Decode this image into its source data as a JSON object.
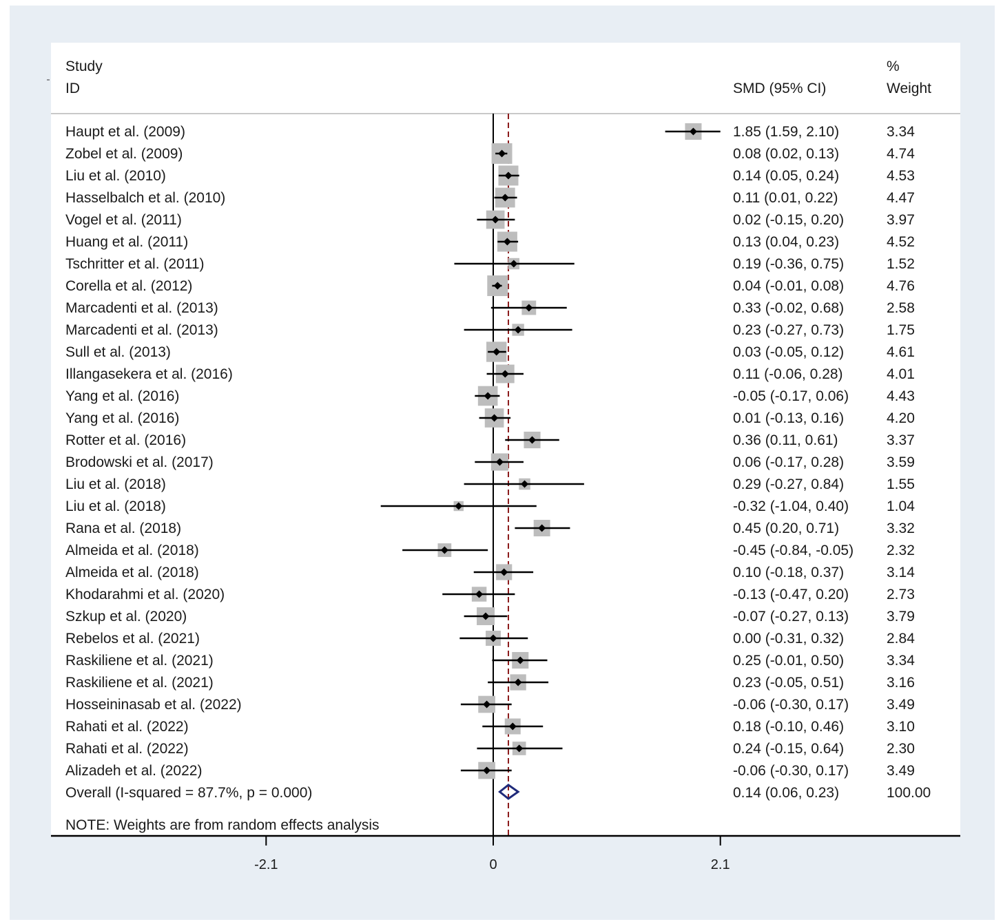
{
  "chart_data": {
    "type": "forest",
    "header": {
      "study_top": "Study",
      "study_bottom": "ID",
      "effect": "SMD (95% CI)",
      "weight_top": "%",
      "weight_bottom": "Weight"
    },
    "xlim": [
      -4.1,
      4.3
    ],
    "ticks": [
      {
        "value": -2.1,
        "label": "-2.1"
      },
      {
        "value": 0,
        "label": "0"
      },
      {
        "value": 2.1,
        "label": "2.1"
      }
    ],
    "colors": {
      "panel": "#ffffff",
      "background": "#e8eef4",
      "box": "#bdbdbd",
      "point": "#000000",
      "reference_line": "#8b1a1a",
      "diamond": "#1f2a7a"
    },
    "studies": [
      {
        "name": "Haupt et al. (2009)",
        "smd": 1.85,
        "lo": 1.59,
        "hi": 2.1,
        "ci_text": "1.85 (1.59, 2.10)",
        "weight": 3.34,
        "weight_text": "3.34"
      },
      {
        "name": "Zobel et al. (2009)",
        "smd": 0.08,
        "lo": 0.02,
        "hi": 0.13,
        "ci_text": "0.08 (0.02, 0.13)",
        "weight": 4.74,
        "weight_text": "4.74"
      },
      {
        "name": "Liu et al. (2010)",
        "smd": 0.14,
        "lo": 0.05,
        "hi": 0.24,
        "ci_text": "0.14 (0.05, 0.24)",
        "weight": 4.53,
        "weight_text": "4.53"
      },
      {
        "name": "Hasselbalch et al. (2010)",
        "smd": 0.11,
        "lo": 0.01,
        "hi": 0.22,
        "ci_text": "0.11 (0.01, 0.22)",
        "weight": 4.47,
        "weight_text": "4.47"
      },
      {
        "name": "Vogel et al. (2011)",
        "smd": 0.02,
        "lo": -0.15,
        "hi": 0.2,
        "ci_text": "0.02 (-0.15, 0.20)",
        "weight": 3.97,
        "weight_text": "3.97"
      },
      {
        "name": "Huang et al. (2011)",
        "smd": 0.13,
        "lo": 0.04,
        "hi": 0.23,
        "ci_text": "0.13 (0.04, 0.23)",
        "weight": 4.52,
        "weight_text": "4.52"
      },
      {
        "name": "Tschritter et al. (2011)",
        "smd": 0.19,
        "lo": -0.36,
        "hi": 0.75,
        "ci_text": "0.19 (-0.36, 0.75)",
        "weight": 1.52,
        "weight_text": "1.52"
      },
      {
        "name": "Corella et al. (2012)",
        "smd": 0.04,
        "lo": -0.01,
        "hi": 0.08,
        "ci_text": "0.04 (-0.01, 0.08)",
        "weight": 4.76,
        "weight_text": "4.76"
      },
      {
        "name": "Marcadenti et al. (2013)",
        "smd": 0.33,
        "lo": -0.02,
        "hi": 0.68,
        "ci_text": "0.33 (-0.02, 0.68)",
        "weight": 2.58,
        "weight_text": "2.58"
      },
      {
        "name": "Marcadenti et al. (2013)",
        "smd": 0.23,
        "lo": -0.27,
        "hi": 0.73,
        "ci_text": "0.23 (-0.27, 0.73)",
        "weight": 1.75,
        "weight_text": "1.75"
      },
      {
        "name": "Sull et al. (2013)",
        "smd": 0.03,
        "lo": -0.05,
        "hi": 0.12,
        "ci_text": "0.03 (-0.05, 0.12)",
        "weight": 4.61,
        "weight_text": "4.61"
      },
      {
        "name": "Illangasekera et al. (2016)",
        "smd": 0.11,
        "lo": -0.06,
        "hi": 0.28,
        "ci_text": "0.11 (-0.06, 0.28)",
        "weight": 4.01,
        "weight_text": "4.01"
      },
      {
        "name": "Yang et al. (2016)",
        "smd": -0.05,
        "lo": -0.17,
        "hi": 0.06,
        "ci_text": "-0.05 (-0.17, 0.06)",
        "weight": 4.43,
        "weight_text": "4.43"
      },
      {
        "name": "Yang et al. (2016)",
        "smd": 0.01,
        "lo": -0.13,
        "hi": 0.16,
        "ci_text": "0.01 (-0.13, 0.16)",
        "weight": 4.2,
        "weight_text": "4.20"
      },
      {
        "name": "Rotter et al. (2016)",
        "smd": 0.36,
        "lo": 0.11,
        "hi": 0.61,
        "ci_text": "0.36 (0.11, 0.61)",
        "weight": 3.37,
        "weight_text": "3.37"
      },
      {
        "name": "Brodowski et al. (2017)",
        "smd": 0.06,
        "lo": -0.17,
        "hi": 0.28,
        "ci_text": "0.06 (-0.17, 0.28)",
        "weight": 3.59,
        "weight_text": "3.59"
      },
      {
        "name": "Liu et al. (2018)",
        "smd": 0.29,
        "lo": -0.27,
        "hi": 0.84,
        "ci_text": "0.29 (-0.27, 0.84)",
        "weight": 1.55,
        "weight_text": "1.55"
      },
      {
        "name": "Liu et al. (2018)",
        "smd": -0.32,
        "lo": -1.04,
        "hi": 0.4,
        "ci_text": "-0.32 (-1.04, 0.40)",
        "weight": 1.04,
        "weight_text": "1.04"
      },
      {
        "name": "Rana et al. (2018)",
        "smd": 0.45,
        "lo": 0.2,
        "hi": 0.71,
        "ci_text": "0.45 (0.20, 0.71)",
        "weight": 3.32,
        "weight_text": "3.32"
      },
      {
        "name": "Almeida et al. (2018)",
        "smd": -0.45,
        "lo": -0.84,
        "hi": -0.05,
        "ci_text": "-0.45 (-0.84, -0.05)",
        "weight": 2.32,
        "weight_text": "2.32"
      },
      {
        "name": "Almeida et al. (2018)",
        "smd": 0.1,
        "lo": -0.18,
        "hi": 0.37,
        "ci_text": "0.10 (-0.18, 0.37)",
        "weight": 3.14,
        "weight_text": "3.14"
      },
      {
        "name": "Khodarahmi et al. (2020)",
        "smd": -0.13,
        "lo": -0.47,
        "hi": 0.2,
        "ci_text": "-0.13 (-0.47, 0.20)",
        "weight": 2.73,
        "weight_text": "2.73"
      },
      {
        "name": "Szkup et al. (2020)",
        "smd": -0.07,
        "lo": -0.27,
        "hi": 0.13,
        "ci_text": "-0.07 (-0.27, 0.13)",
        "weight": 3.79,
        "weight_text": "3.79"
      },
      {
        "name": "Rebelos et al. (2021)",
        "smd": 0.0,
        "lo": -0.31,
        "hi": 0.32,
        "ci_text": "0.00 (-0.31, 0.32)",
        "weight": 2.84,
        "weight_text": "2.84"
      },
      {
        "name": "Raskiliene et al. (2021)",
        "smd": 0.25,
        "lo": -0.01,
        "hi": 0.5,
        "ci_text": "0.25 (-0.01, 0.50)",
        "weight": 3.34,
        "weight_text": "3.34"
      },
      {
        "name": "Raskiliene et al. (2021)",
        "smd": 0.23,
        "lo": -0.05,
        "hi": 0.51,
        "ci_text": "0.23 (-0.05, 0.51)",
        "weight": 3.16,
        "weight_text": "3.16"
      },
      {
        "name": "Hosseininasab et al. (2022)",
        "smd": -0.06,
        "lo": -0.3,
        "hi": 0.17,
        "ci_text": "-0.06 (-0.30, 0.17)",
        "weight": 3.49,
        "weight_text": "3.49"
      },
      {
        "name": "Rahati et al. (2022)",
        "smd": 0.18,
        "lo": -0.1,
        "hi": 0.46,
        "ci_text": "0.18 (-0.10, 0.46)",
        "weight": 3.1,
        "weight_text": "3.10"
      },
      {
        "name": "Rahati et al. (2022)",
        "smd": 0.24,
        "lo": -0.15,
        "hi": 0.64,
        "ci_text": "0.24 (-0.15, 0.64)",
        "weight": 2.3,
        "weight_text": "2.30"
      },
      {
        "name": "Alizadeh et al. (2022)",
        "smd": -0.06,
        "lo": -0.3,
        "hi": 0.17,
        "ci_text": "-0.06 (-0.30, 0.17)",
        "weight": 3.49,
        "weight_text": "3.49"
      }
    ],
    "overall": {
      "label": "Overall  (I-squared = 87.7%, p = 0.000)",
      "smd": 0.14,
      "lo": 0.06,
      "hi": 0.23,
      "ci_text": "0.14 (0.06, 0.23)",
      "weight_text": "100.00"
    },
    "note": "NOTE: Weights are from random effects analysis"
  }
}
